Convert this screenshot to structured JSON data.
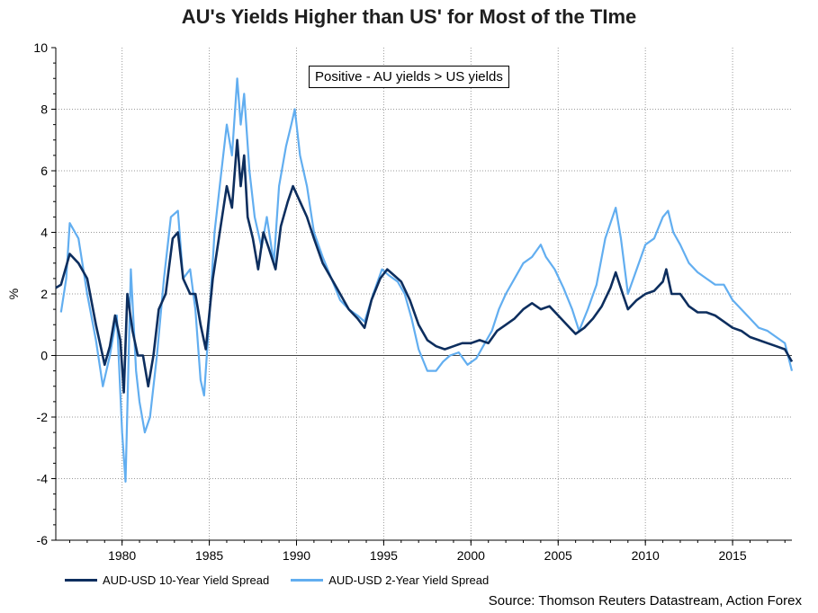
{
  "chart_data": {
    "type": "line",
    "title": "AU's Yields Higher than US' for Most of the TIme",
    "xlabel": "",
    "ylabel": "%",
    "xlim": [
      1976.2,
      2018.4
    ],
    "ylim": [
      -6,
      10
    ],
    "yticks": [
      "10",
      "8",
      "6",
      "4",
      "2",
      "0",
      "-2",
      "-4",
      "-6"
    ],
    "xticks": [
      "1980",
      "1985",
      "1990",
      "1995",
      "2000",
      "2005",
      "2010",
      "2015"
    ],
    "grid": true,
    "annotation": "Positive - AU yields > US yields",
    "source": "Source: Thomson Reuters Datastream, Action Forex",
    "series": [
      {
        "name": "AUD-USD 10-Year Yield Spread",
        "color": "#0d2e5e",
        "points": [
          [
            1976.2,
            2.2
          ],
          [
            1976.5,
            2.3
          ],
          [
            1977.0,
            3.3
          ],
          [
            1977.5,
            3.0
          ],
          [
            1978.0,
            2.5
          ],
          [
            1978.5,
            1.0
          ],
          [
            1979.0,
            -0.3
          ],
          [
            1979.3,
            0.3
          ],
          [
            1979.6,
            1.3
          ],
          [
            1979.9,
            0.5
          ],
          [
            1980.1,
            -1.2
          ],
          [
            1980.3,
            2.0
          ],
          [
            1980.6,
            0.8
          ],
          [
            1980.9,
            0.0
          ],
          [
            1981.2,
            0.0
          ],
          [
            1981.5,
            -1.0
          ],
          [
            1981.8,
            0.0
          ],
          [
            1982.1,
            1.5
          ],
          [
            1982.5,
            2.0
          ],
          [
            1982.9,
            3.8
          ],
          [
            1983.2,
            4.0
          ],
          [
            1983.5,
            2.5
          ],
          [
            1983.9,
            2.0
          ],
          [
            1984.2,
            2.0
          ],
          [
            1984.5,
            1.0
          ],
          [
            1984.8,
            0.2
          ],
          [
            1985.2,
            2.5
          ],
          [
            1985.6,
            4.0
          ],
          [
            1986.0,
            5.5
          ],
          [
            1986.3,
            4.8
          ],
          [
            1986.6,
            7.0
          ],
          [
            1986.8,
            5.5
          ],
          [
            1987.0,
            6.5
          ],
          [
            1987.2,
            4.5
          ],
          [
            1987.5,
            3.8
          ],
          [
            1987.8,
            2.8
          ],
          [
            1988.1,
            4.0
          ],
          [
            1988.4,
            3.5
          ],
          [
            1988.8,
            2.8
          ],
          [
            1989.1,
            4.2
          ],
          [
            1989.5,
            5.0
          ],
          [
            1989.8,
            5.5
          ],
          [
            1990.2,
            5.0
          ],
          [
            1990.6,
            4.5
          ],
          [
            1991.0,
            3.8
          ],
          [
            1991.5,
            3.0
          ],
          [
            1992.0,
            2.5
          ],
          [
            1992.5,
            2.0
          ],
          [
            1993.0,
            1.5
          ],
          [
            1993.5,
            1.2
          ],
          [
            1993.9,
            0.9
          ],
          [
            1994.3,
            1.8
          ],
          [
            1994.8,
            2.5
          ],
          [
            1995.2,
            2.8
          ],
          [
            1995.6,
            2.6
          ],
          [
            1996.0,
            2.4
          ],
          [
            1996.5,
            1.8
          ],
          [
            1997.0,
            1.0
          ],
          [
            1997.5,
            0.5
          ],
          [
            1998.0,
            0.3
          ],
          [
            1998.5,
            0.2
          ],
          [
            1999.0,
            0.3
          ],
          [
            1999.5,
            0.4
          ],
          [
            2000.0,
            0.4
          ],
          [
            2000.5,
            0.5
          ],
          [
            2001.0,
            0.4
          ],
          [
            2001.5,
            0.8
          ],
          [
            2002.0,
            1.0
          ],
          [
            2002.5,
            1.2
          ],
          [
            2003.0,
            1.5
          ],
          [
            2003.5,
            1.7
          ],
          [
            2004.0,
            1.5
          ],
          [
            2004.5,
            1.6
          ],
          [
            2005.0,
            1.3
          ],
          [
            2005.5,
            1.0
          ],
          [
            2006.0,
            0.7
          ],
          [
            2006.5,
            0.9
          ],
          [
            2007.0,
            1.2
          ],
          [
            2007.5,
            1.6
          ],
          [
            2008.0,
            2.2
          ],
          [
            2008.3,
            2.7
          ],
          [
            2008.7,
            2.0
          ],
          [
            2009.0,
            1.5
          ],
          [
            2009.5,
            1.8
          ],
          [
            2010.0,
            2.0
          ],
          [
            2010.5,
            2.1
          ],
          [
            2011.0,
            2.4
          ],
          [
            2011.2,
            2.8
          ],
          [
            2011.5,
            2.0
          ],
          [
            2012.0,
            2.0
          ],
          [
            2012.5,
            1.6
          ],
          [
            2013.0,
            1.4
          ],
          [
            2013.5,
            1.4
          ],
          [
            2014.0,
            1.3
          ],
          [
            2014.5,
            1.1
          ],
          [
            2015.0,
            0.9
          ],
          [
            2015.5,
            0.8
          ],
          [
            2016.0,
            0.6
          ],
          [
            2016.5,
            0.5
          ],
          [
            2017.0,
            0.4
          ],
          [
            2017.5,
            0.3
          ],
          [
            2018.0,
            0.2
          ],
          [
            2018.4,
            -0.2
          ]
        ]
      },
      {
        "name": "AUD-USD 2-Year Yield Spread",
        "color": "#62aef0",
        "points": [
          [
            1976.5,
            1.4
          ],
          [
            1976.8,
            2.5
          ],
          [
            1977.0,
            4.3
          ],
          [
            1977.5,
            3.8
          ],
          [
            1978.0,
            2.0
          ],
          [
            1978.5,
            0.5
          ],
          [
            1978.9,
            -1.0
          ],
          [
            1979.3,
            0.0
          ],
          [
            1979.7,
            1.3
          ],
          [
            1980.0,
            -2.5
          ],
          [
            1980.2,
            -4.1
          ],
          [
            1980.5,
            2.8
          ],
          [
            1980.8,
            -0.5
          ],
          [
            1981.0,
            -1.5
          ],
          [
            1981.3,
            -2.5
          ],
          [
            1981.6,
            -2.0
          ],
          [
            1982.0,
            0.0
          ],
          [
            1982.4,
            2.5
          ],
          [
            1982.8,
            4.5
          ],
          [
            1983.2,
            4.7
          ],
          [
            1983.5,
            2.5
          ],
          [
            1983.9,
            2.8
          ],
          [
            1984.2,
            1.5
          ],
          [
            1984.5,
            -0.8
          ],
          [
            1984.7,
            -1.3
          ],
          [
            1985.0,
            1.2
          ],
          [
            1985.3,
            4.0
          ],
          [
            1985.7,
            6.0
          ],
          [
            1986.0,
            7.5
          ],
          [
            1986.3,
            6.5
          ],
          [
            1986.6,
            9.0
          ],
          [
            1986.8,
            7.5
          ],
          [
            1987.0,
            8.5
          ],
          [
            1987.3,
            6.0
          ],
          [
            1987.6,
            4.5
          ],
          [
            1988.0,
            3.5
          ],
          [
            1988.3,
            4.5
          ],
          [
            1988.7,
            3.0
          ],
          [
            1989.0,
            5.5
          ],
          [
            1989.4,
            6.8
          ],
          [
            1989.7,
            7.5
          ],
          [
            1989.9,
            8.0
          ],
          [
            1990.2,
            6.5
          ],
          [
            1990.6,
            5.5
          ],
          [
            1991.0,
            4.0
          ],
          [
            1991.5,
            3.2
          ],
          [
            1992.0,
            2.5
          ],
          [
            1992.5,
            1.8
          ],
          [
            1993.0,
            1.5
          ],
          [
            1993.5,
            1.3
          ],
          [
            1993.9,
            1.1
          ],
          [
            1994.4,
            2.0
          ],
          [
            1994.9,
            2.8
          ],
          [
            1995.3,
            2.6
          ],
          [
            1995.8,
            2.4
          ],
          [
            1996.2,
            2.0
          ],
          [
            1996.6,
            1.2
          ],
          [
            1997.0,
            0.2
          ],
          [
            1997.5,
            -0.5
          ],
          [
            1998.0,
            -0.5
          ],
          [
            1998.4,
            -0.2
          ],
          [
            1998.8,
            0.0
          ],
          [
            1999.3,
            0.1
          ],
          [
            1999.8,
            -0.3
          ],
          [
            2000.3,
            -0.1
          ],
          [
            2000.8,
            0.4
          ],
          [
            2001.2,
            0.8
          ],
          [
            2001.6,
            1.5
          ],
          [
            2002.0,
            2.0
          ],
          [
            2002.5,
            2.5
          ],
          [
            2003.0,
            3.0
          ],
          [
            2003.5,
            3.2
          ],
          [
            2004.0,
            3.6
          ],
          [
            2004.3,
            3.2
          ],
          [
            2004.8,
            2.8
          ],
          [
            2005.3,
            2.2
          ],
          [
            2005.8,
            1.5
          ],
          [
            2006.2,
            0.8
          ],
          [
            2006.7,
            1.5
          ],
          [
            2007.2,
            2.3
          ],
          [
            2007.7,
            3.8
          ],
          [
            2008.0,
            4.3
          ],
          [
            2008.3,
            4.8
          ],
          [
            2008.6,
            3.8
          ],
          [
            2009.0,
            2.0
          ],
          [
            2009.5,
            2.8
          ],
          [
            2010.0,
            3.6
          ],
          [
            2010.5,
            3.8
          ],
          [
            2011.0,
            4.5
          ],
          [
            2011.3,
            4.7
          ],
          [
            2011.6,
            4.0
          ],
          [
            2012.0,
            3.6
          ],
          [
            2012.5,
            3.0
          ],
          [
            2013.0,
            2.7
          ],
          [
            2013.5,
            2.5
          ],
          [
            2014.0,
            2.3
          ],
          [
            2014.5,
            2.3
          ],
          [
            2015.0,
            1.8
          ],
          [
            2015.5,
            1.5
          ],
          [
            2016.0,
            1.2
          ],
          [
            2016.5,
            0.9
          ],
          [
            2017.0,
            0.8
          ],
          [
            2017.5,
            0.6
          ],
          [
            2018.0,
            0.4
          ],
          [
            2018.4,
            -0.5
          ]
        ]
      }
    ]
  }
}
